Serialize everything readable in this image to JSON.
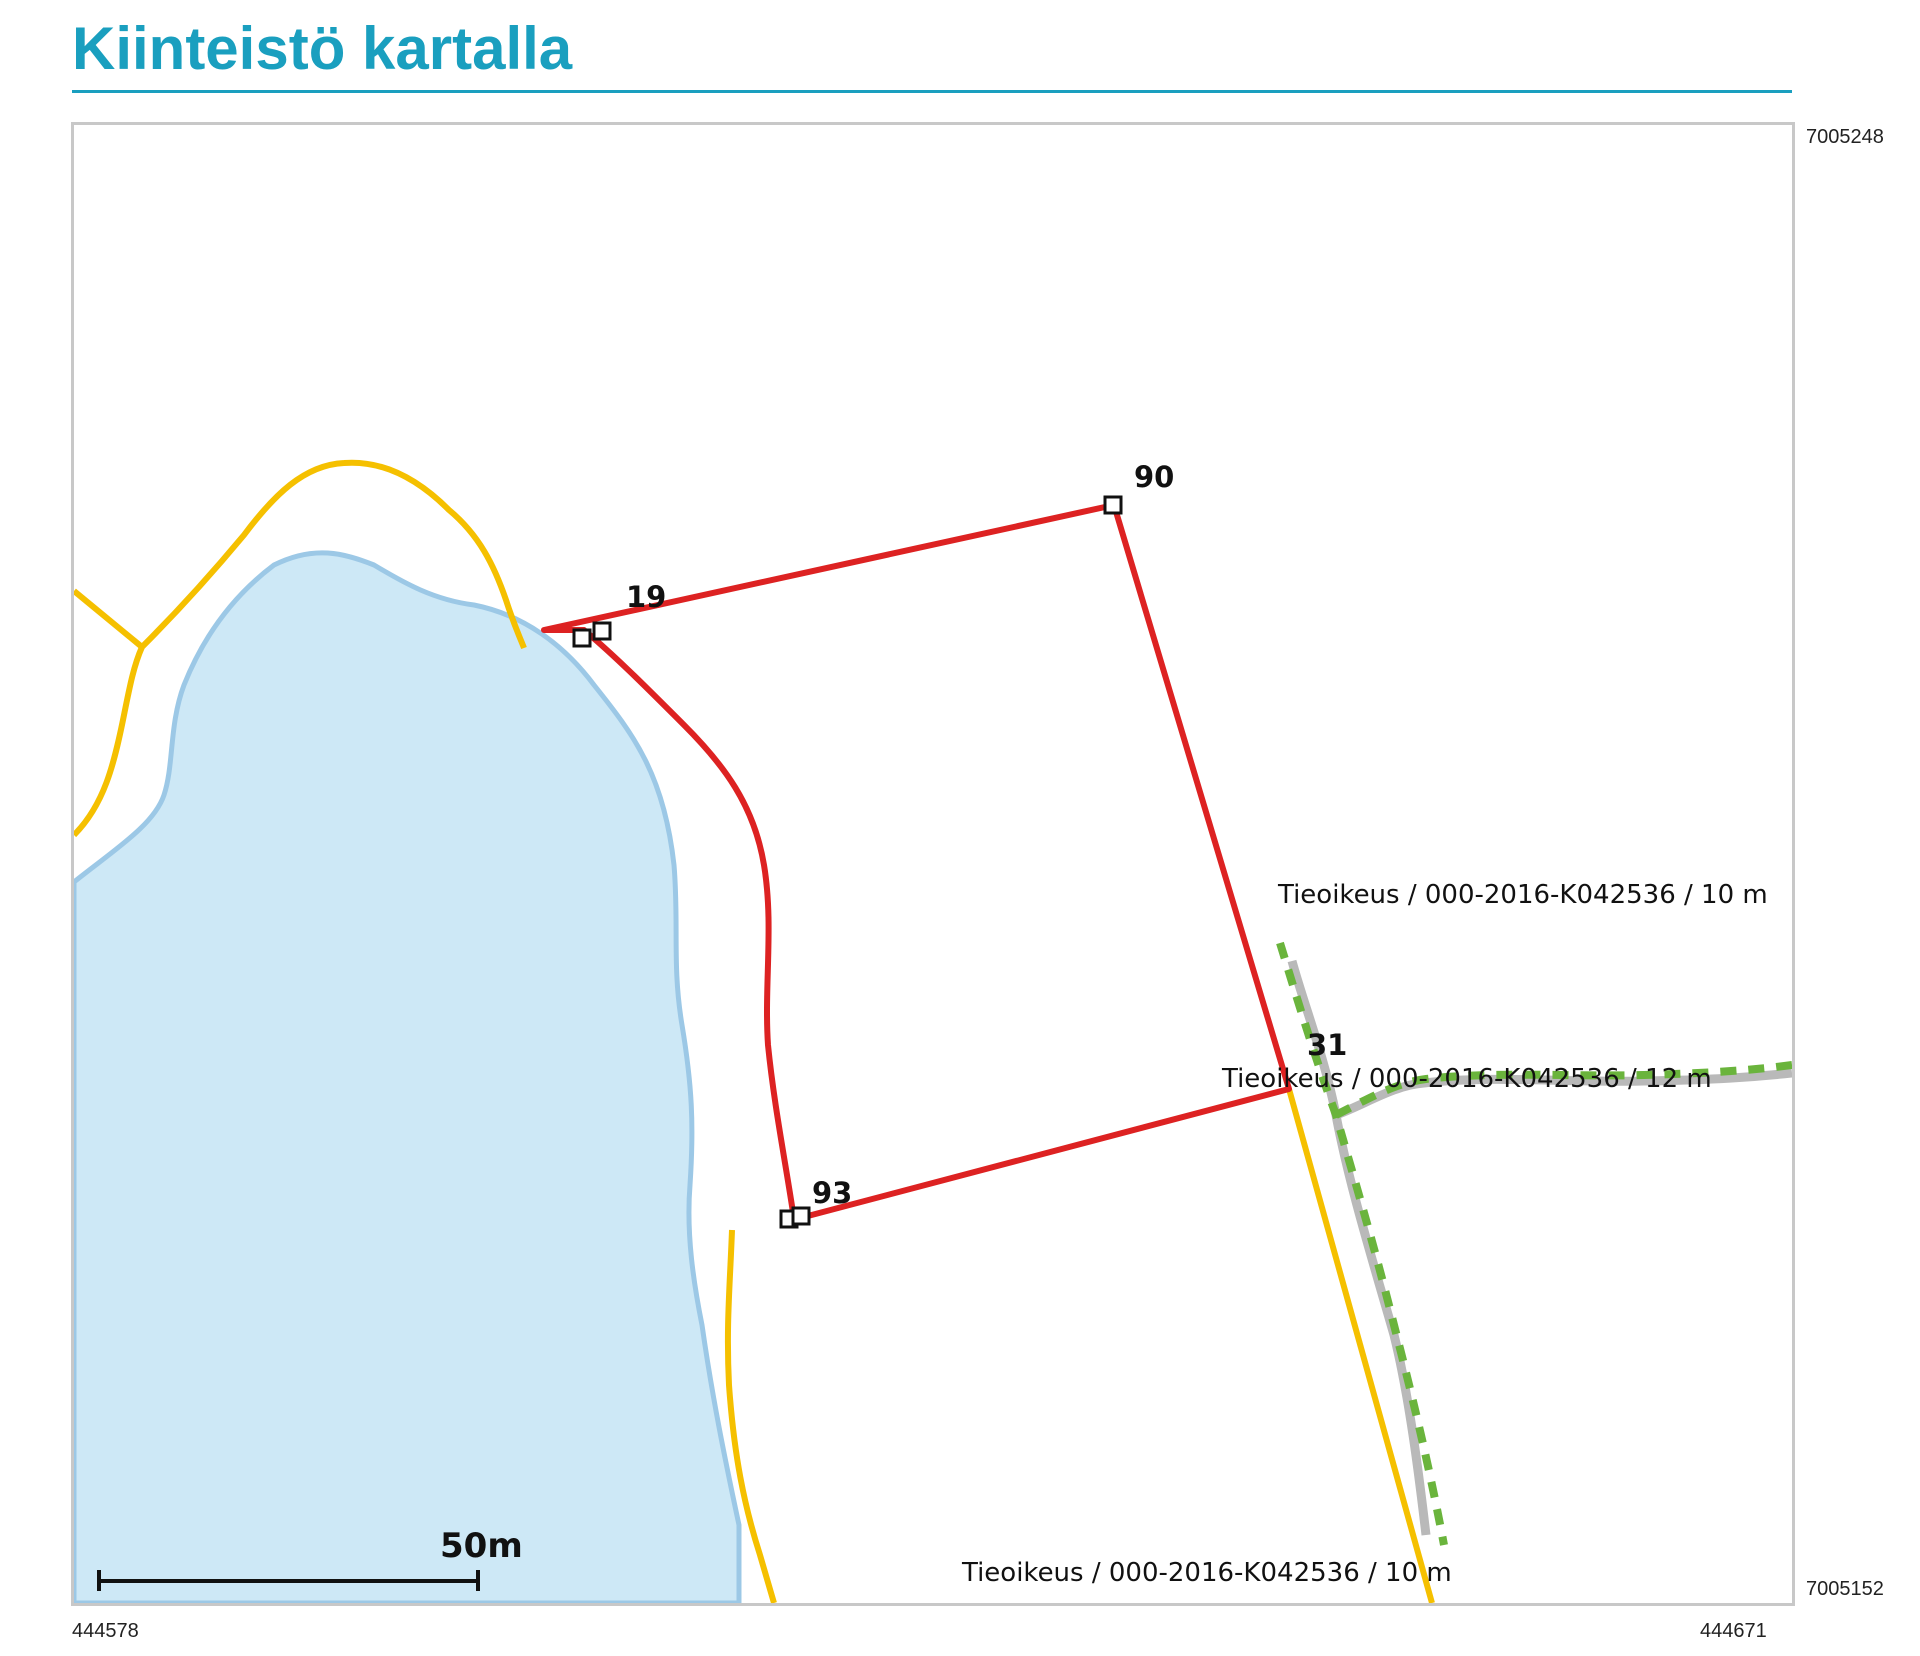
{
  "header": {
    "title": "Kiinteistö kartalla"
  },
  "coordinates": {
    "north_top": "7005248",
    "north_bottom": "7005152",
    "east_left": "444578",
    "east_right": "444671"
  },
  "boundary_points": [
    {
      "id": "p19",
      "label": "19"
    },
    {
      "id": "p90",
      "label": "90"
    },
    {
      "id": "p31",
      "label": "31"
    },
    {
      "id": "p93",
      "label": "93"
    }
  ],
  "easements": [
    {
      "label": "Tieoikeus / 000-2016-K042536 / 10 m"
    },
    {
      "label": "Tieoikeus / 000-2016-K042536 / 12 m"
    },
    {
      "label": "Tieoikeus / 000-2016-K042536 / 10 m"
    }
  ],
  "scale_bar": {
    "label": "50m"
  },
  "colors": {
    "title": "#1a9fbf",
    "parcel_boundary": "#dd2222",
    "neighbor_boundary": "#f5c000",
    "water_fill": "#cde8f6",
    "water_edge": "#9cc8e6",
    "easement": "#6ab43c",
    "road": "#b9b9b9"
  }
}
